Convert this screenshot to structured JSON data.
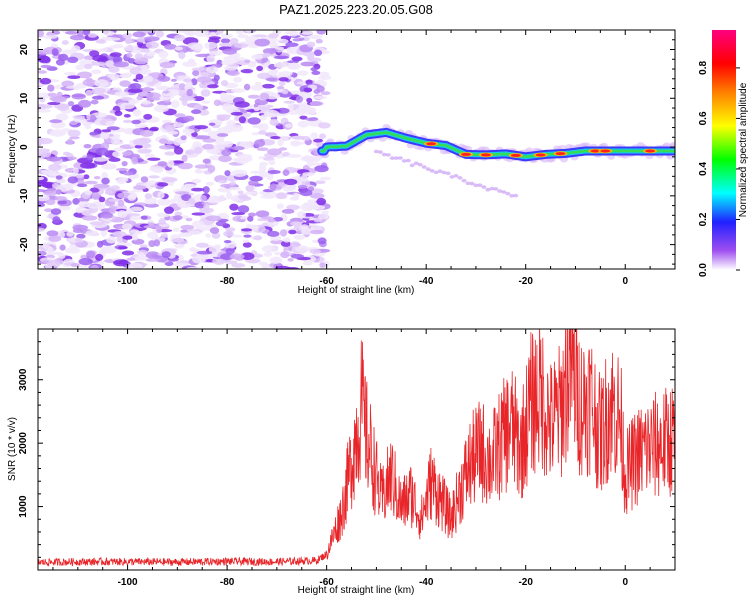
{
  "colors": {
    "snr_line": "#e8262a",
    "background": "#ffffff",
    "axis": "#000000",
    "spectrogram_noise": "#8a2be2"
  },
  "chart_data": [
    {
      "type": "heatmap",
      "title": "PAZ1.2025.223.20.05.G08",
      "xlabel": "Height of straight line (km)",
      "ylabel": "Frequency (Hz)",
      "xlim": [
        -118,
        10
      ],
      "ylim": [
        -25,
        24
      ],
      "xticks": [
        -100,
        -80,
        -60,
        -40,
        -20,
        0
      ],
      "yticks": [
        -20,
        -10,
        0,
        10,
        20
      ],
      "colorbar": {
        "label": "Normalized spectral amplitude",
        "range": [
          0.0,
          0.95
        ],
        "ticks": [
          "0.0",
          "0.2",
          "0.4",
          "0.6",
          "0.8"
        ],
        "colormap": "rainbow (purple-blue-cyan-green-yellow-red-magenta)"
      },
      "noise_region": {
        "x_range": [
          -118,
          -61
        ],
        "freq_range": [
          -25,
          24
        ],
        "amplitude": "0.0-0.15"
      },
      "signal_ridge": [
        {
          "x": -60,
          "f": 0.0
        },
        {
          "x": -56,
          "f": 0.2
        },
        {
          "x": -52,
          "f": 2.5
        },
        {
          "x": -48,
          "f": 3.0
        },
        {
          "x": -44,
          "f": 1.8
        },
        {
          "x": -40,
          "f": 0.8
        },
        {
          "x": -36,
          "f": 0.3
        },
        {
          "x": -32,
          "f": -1.5
        },
        {
          "x": -28,
          "f": -1.6
        },
        {
          "x": -24,
          "f": -1.4
        },
        {
          "x": -20,
          "f": -2.0
        },
        {
          "x": -16,
          "f": -1.5
        },
        {
          "x": -12,
          "f": -1.3
        },
        {
          "x": -8,
          "f": -0.8
        },
        {
          "x": -4,
          "f": -0.8
        },
        {
          "x": 0,
          "f": -0.8
        },
        {
          "x": 4,
          "f": -0.8
        },
        {
          "x": 10,
          "f": -0.8
        }
      ]
    },
    {
      "type": "line",
      "xlabel": "Height of straight line (km)",
      "ylabel": "SNR (10 * v/v)",
      "xlim": [
        -118,
        10
      ],
      "ylim": [
        0,
        3800
      ],
      "xticks": [
        -100,
        -80,
        -60,
        -40,
        -20,
        0
      ],
      "yticks": [
        1000,
        2000,
        3000
      ],
      "series": [
        {
          "x": [
            -118,
            -110,
            -100,
            -90,
            -80,
            -70,
            -62,
            -60,
            -57,
            -55,
            -53,
            -52,
            -51,
            -49,
            -47,
            -45,
            -43,
            -41,
            -39,
            -37,
            -35,
            -33,
            -31,
            -29,
            -27,
            -25,
            -23,
            -21,
            -19,
            -17,
            -15,
            -13,
            -11,
            -9,
            -7,
            -5,
            -3,
            -1,
            0,
            2,
            4,
            6,
            8,
            10
          ],
          "values": [
            120,
            130,
            130,
            125,
            135,
            130,
            150,
            250,
            900,
            1700,
            2600,
            2100,
            1800,
            1100,
            1500,
            1000,
            1200,
            800,
            1400,
            1100,
            800,
            1300,
            1700,
            1900,
            1700,
            2000,
            2300,
            1900,
            2600,
            2800,
            2300,
            2500,
            3300,
            2600,
            2700,
            2100,
            2600,
            2400,
            1500,
            1750,
            1900,
            1950,
            2000,
            2100
          ]
        }
      ]
    }
  ]
}
